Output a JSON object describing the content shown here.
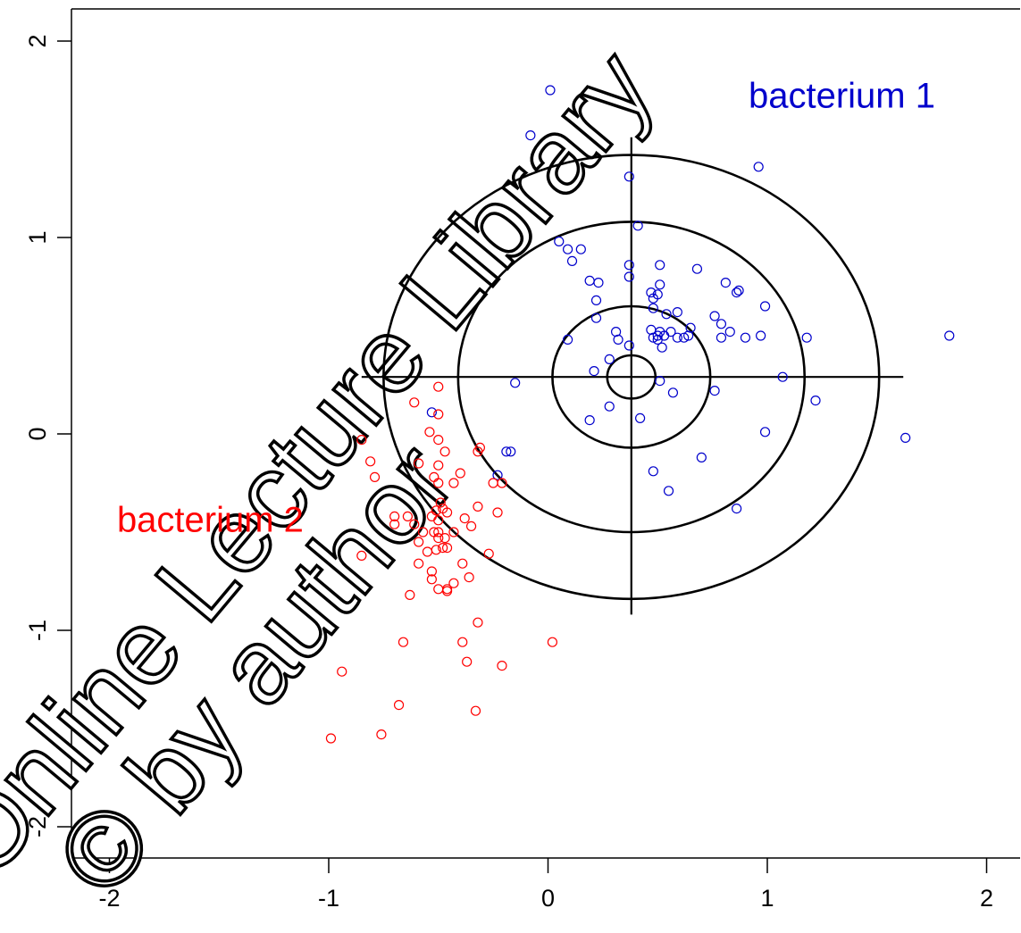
{
  "chart_data": {
    "type": "scatter",
    "title": "",
    "xlabel": "",
    "ylabel": "",
    "xlim": [
      -2.15,
      2.15
    ],
    "ylim": [
      -2.2,
      2.2
    ],
    "x_ticks": [
      -2,
      -1,
      0,
      1,
      2
    ],
    "y_ticks": [
      -2,
      -1,
      0,
      1,
      2
    ],
    "grid": false,
    "colors": {
      "bacterium1": "#0000cc",
      "bacterium2": "#ff0000",
      "target": "#000000"
    },
    "target": {
      "center": [
        0.38,
        0.29
      ],
      "radii": [
        0.11,
        0.36,
        0.79,
        1.13
      ],
      "h_line": [
        -0.85,
        1.62
      ],
      "v_line": [
        -0.92,
        1.51
      ]
    },
    "labels": [
      {
        "text": "bacterium 1",
        "x": 1.34,
        "y": 1.71,
        "color": "#0000cc"
      },
      {
        "text": "bacterium 2",
        "x": -1.54,
        "y": -0.45,
        "color": "#ff0000"
      }
    ],
    "series": [
      {
        "color": "#0000cc",
        "points": [
          [
            0.01,
            1.75
          ],
          [
            -0.08,
            1.52
          ],
          [
            0.37,
            1.31
          ],
          [
            0.96,
            1.36
          ],
          [
            0.41,
            1.06
          ],
          [
            0.05,
            0.98
          ],
          [
            0.09,
            0.94
          ],
          [
            0.15,
            0.94
          ],
          [
            0.11,
            0.88
          ],
          [
            0.37,
            0.86
          ],
          [
            0.51,
            0.86
          ],
          [
            0.68,
            0.84
          ],
          [
            0.37,
            0.8
          ],
          [
            0.19,
            0.78
          ],
          [
            0.23,
            0.77
          ],
          [
            0.51,
            0.76
          ],
          [
            0.81,
            0.77
          ],
          [
            0.87,
            0.73
          ],
          [
            0.86,
            0.72
          ],
          [
            0.47,
            0.72
          ],
          [
            0.5,
            0.71
          ],
          [
            0.48,
            0.69
          ],
          [
            0.22,
            0.68
          ],
          [
            0.99,
            0.65
          ],
          [
            0.48,
            0.64
          ],
          [
            0.59,
            0.62
          ],
          [
            0.54,
            0.61
          ],
          [
            0.22,
            0.59
          ],
          [
            0.76,
            0.6
          ],
          [
            0.79,
            0.56
          ],
          [
            0.65,
            0.54
          ],
          [
            0.47,
            0.53
          ],
          [
            0.51,
            0.52
          ],
          [
            0.56,
            0.52
          ],
          [
            0.31,
            0.52
          ],
          [
            0.83,
            0.52
          ],
          [
            0.5,
            0.5
          ],
          [
            0.53,
            0.5
          ],
          [
            0.62,
            0.49
          ],
          [
            0.64,
            0.5
          ],
          [
            0.48,
            0.49
          ],
          [
            0.5,
            0.48
          ],
          [
            0.32,
            0.48
          ],
          [
            0.59,
            0.49
          ],
          [
            0.79,
            0.49
          ],
          [
            0.9,
            0.49
          ],
          [
            0.97,
            0.5
          ],
          [
            1.18,
            0.49
          ],
          [
            1.83,
            0.5
          ],
          [
            0.09,
            0.48
          ],
          [
            0.37,
            0.45
          ],
          [
            0.52,
            0.44
          ],
          [
            0.28,
            0.38
          ],
          [
            0.21,
            0.32
          ],
          [
            1.07,
            0.29
          ],
          [
            -0.15,
            0.26
          ],
          [
            0.51,
            0.27
          ],
          [
            0.76,
            0.22
          ],
          [
            0.57,
            0.21
          ],
          [
            1.22,
            0.17
          ],
          [
            0.28,
            0.14
          ],
          [
            -0.53,
            0.11
          ],
          [
            0.42,
            0.08
          ],
          [
            0.19,
            0.07
          ],
          [
            0.99,
            0.01
          ],
          [
            1.63,
            -0.02
          ],
          [
            -0.19,
            -0.09
          ],
          [
            -0.17,
            -0.09
          ],
          [
            0.7,
            -0.12
          ],
          [
            0.48,
            -0.19
          ],
          [
            -0.23,
            -0.21
          ],
          [
            0.55,
            -0.29
          ],
          [
            0.86,
            -0.38
          ]
        ]
      },
      {
        "color": "#ff0000",
        "points": [
          [
            -0.5,
            0.24
          ],
          [
            -0.61,
            0.16
          ],
          [
            -0.5,
            0.1
          ],
          [
            -0.5,
            -0.03
          ],
          [
            -0.54,
            0.01
          ],
          [
            -0.85,
            -0.03
          ],
          [
            -0.31,
            -0.07
          ],
          [
            -0.32,
            -0.09
          ],
          [
            -0.47,
            -0.09
          ],
          [
            -0.81,
            -0.14
          ],
          [
            -0.59,
            -0.15
          ],
          [
            -0.5,
            -0.16
          ],
          [
            -0.4,
            -0.2
          ],
          [
            -0.52,
            -0.22
          ],
          [
            -0.79,
            -0.22
          ],
          [
            -0.5,
            -0.25
          ],
          [
            -0.43,
            -0.25
          ],
          [
            -0.25,
            -0.25
          ],
          [
            -0.21,
            -0.25
          ],
          [
            -0.49,
            -0.35
          ],
          [
            -0.48,
            -0.38
          ],
          [
            -0.51,
            -0.39
          ],
          [
            -0.46,
            -0.4
          ],
          [
            -0.32,
            -0.37
          ],
          [
            -0.23,
            -0.4
          ],
          [
            -0.7,
            -0.42
          ],
          [
            -0.64,
            -0.42
          ],
          [
            -0.53,
            -0.42
          ],
          [
            -0.5,
            -0.44
          ],
          [
            -0.38,
            -0.43
          ],
          [
            -0.7,
            -0.46
          ],
          [
            -0.61,
            -0.46
          ],
          [
            -0.35,
            -0.47
          ],
          [
            -0.57,
            -0.5
          ],
          [
            -0.52,
            -0.5
          ],
          [
            -0.5,
            -0.5
          ],
          [
            -0.43,
            -0.5
          ],
          [
            -0.5,
            -0.53
          ],
          [
            -0.47,
            -0.53
          ],
          [
            -0.59,
            -0.55
          ],
          [
            -0.48,
            -0.58
          ],
          [
            -0.46,
            -0.58
          ],
          [
            -0.51,
            -0.59
          ],
          [
            -0.55,
            -0.6
          ],
          [
            -0.27,
            -0.61
          ],
          [
            -0.85,
            -0.62
          ],
          [
            -0.59,
            -0.66
          ],
          [
            -0.39,
            -0.66
          ],
          [
            -0.53,
            -0.7
          ],
          [
            -0.36,
            -0.73
          ],
          [
            -0.53,
            -0.74
          ],
          [
            -0.43,
            -0.76
          ],
          [
            -0.5,
            -0.79
          ],
          [
            -0.46,
            -0.8
          ],
          [
            -0.46,
            -0.79
          ],
          [
            -0.63,
            -0.82
          ],
          [
            -0.32,
            -0.96
          ],
          [
            -0.66,
            -1.06
          ],
          [
            -0.39,
            -1.06
          ],
          [
            0.02,
            -1.06
          ],
          [
            -0.37,
            -1.16
          ],
          [
            -0.21,
            -1.18
          ],
          [
            -0.94,
            -1.21
          ],
          [
            -0.68,
            -1.38
          ],
          [
            -0.33,
            -1.41
          ],
          [
            -0.99,
            -1.55
          ],
          [
            -0.76,
            -1.53
          ]
        ]
      }
    ]
  },
  "watermark": {
    "lines": [
      "Online Lecture Library",
      "© by author"
    ]
  }
}
